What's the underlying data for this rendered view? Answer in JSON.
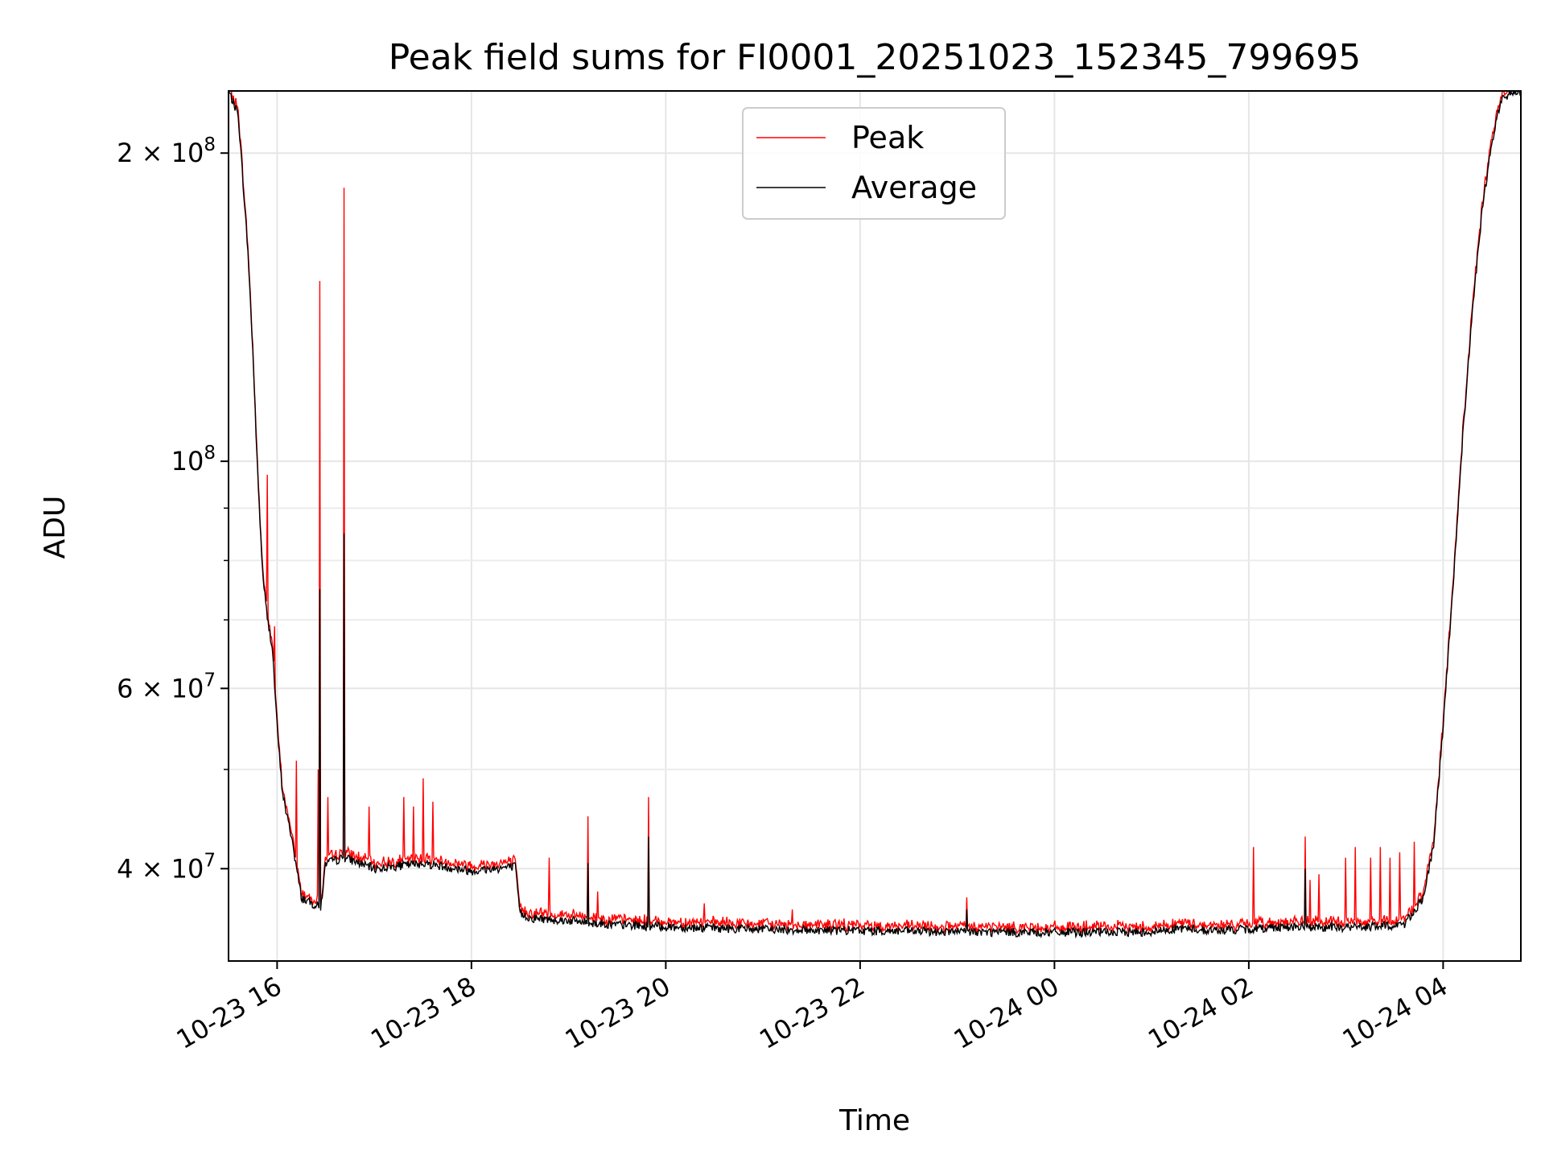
{
  "chart_data": {
    "type": "line",
    "title": "Peak field sums for FI0001_20251023_152345_799695",
    "xlabel": "Time",
    "ylabel": "ADU",
    "yscale": "log",
    "ylim": [
      32500000,
      230000000
    ],
    "xlim_hours": [
      15.5,
      28.8
    ],
    "grid": true,
    "legend_position": "upper center",
    "x_ticks": [
      {
        "hour": 16,
        "label": "10-23 16"
      },
      {
        "hour": 18,
        "label": "10-23 18"
      },
      {
        "hour": 20,
        "label": "10-23 20"
      },
      {
        "hour": 22,
        "label": "10-23 22"
      },
      {
        "hour": 24,
        "label": "10-24 00"
      },
      {
        "hour": 26,
        "label": "10-24 02"
      },
      {
        "hour": 28,
        "label": "10-24 04"
      }
    ],
    "y_major_ticks": [
      {
        "value": 40000000,
        "mant": "4 × 10",
        "exp": "7"
      },
      {
        "value": 60000000,
        "mant": "6 × 10",
        "exp": "7"
      },
      {
        "value": 100000000,
        "mant": "10",
        "exp": "8"
      },
      {
        "value": 200000000,
        "mant": "2 × 10",
        "exp": "8"
      }
    ],
    "y_minor_ticks": [
      50000000,
      70000000,
      80000000,
      90000000
    ],
    "series": [
      {
        "name": "Peak",
        "color": "#ff0000"
      },
      {
        "name": "Average",
        "color": "#000000"
      }
    ],
    "baseline_shape": [
      [
        15.5,
        230000000
      ],
      [
        15.6,
        218000000
      ],
      [
        15.7,
        160000000
      ],
      [
        15.75,
        128000000
      ],
      [
        15.8,
        97000000
      ],
      [
        15.85,
        78000000
      ],
      [
        15.9,
        70000000
      ],
      [
        15.95,
        66000000
      ],
      [
        16.0,
        55000000
      ],
      [
        16.05,
        48000000
      ],
      [
        16.1,
        45000000
      ],
      [
        16.15,
        43000000
      ],
      [
        16.2,
        40000000
      ],
      [
        16.25,
        37500000
      ],
      [
        16.35,
        37000000
      ],
      [
        16.45,
        36700000
      ],
      [
        16.5,
        40500000
      ],
      [
        16.7,
        41000000
      ],
      [
        17.0,
        40000000
      ],
      [
        17.5,
        40500000
      ],
      [
        18.0,
        39800000
      ],
      [
        18.45,
        40200000
      ],
      [
        18.5,
        36200000
      ],
      [
        18.6,
        35800000
      ],
      [
        19.0,
        35600000
      ],
      [
        19.4,
        35300000
      ],
      [
        20.0,
        35100000
      ],
      [
        20.5,
        35000000
      ],
      [
        21.0,
        34900000
      ],
      [
        22.0,
        34800000
      ],
      [
        23.0,
        34700000
      ],
      [
        24.0,
        34650000
      ],
      [
        25.0,
        34700000
      ],
      [
        25.3,
        35000000
      ],
      [
        25.6,
        34800000
      ],
      [
        26.0,
        34900000
      ],
      [
        26.3,
        35100000
      ],
      [
        26.8,
        35050000
      ],
      [
        27.3,
        35100000
      ],
      [
        27.6,
        35300000
      ],
      [
        27.8,
        37500000
      ],
      [
        27.9,
        42000000
      ],
      [
        28.0,
        55000000
      ],
      [
        28.1,
        75000000
      ],
      [
        28.2,
        105000000
      ],
      [
        28.3,
        140000000
      ],
      [
        28.4,
        175000000
      ],
      [
        28.5,
        205000000
      ],
      [
        28.6,
        225000000
      ],
      [
        28.7,
        230000000
      ],
      [
        28.8,
        230000000
      ]
    ],
    "spikes_peak": [
      [
        15.9,
        97000000
      ],
      [
        15.97,
        69000000
      ],
      [
        16.2,
        51000000
      ],
      [
        16.42,
        50000000
      ],
      [
        16.44,
        150000000
      ],
      [
        16.69,
        185000000
      ],
      [
        16.52,
        47000000
      ],
      [
        16.95,
        46000000
      ],
      [
        17.3,
        47000000
      ],
      [
        17.4,
        46000000
      ],
      [
        17.5,
        49000000
      ],
      [
        17.6,
        46500000
      ],
      [
        18.8,
        41000000
      ],
      [
        19.2,
        45000000
      ],
      [
        19.3,
        38000000
      ],
      [
        19.82,
        47000000
      ],
      [
        20.4,
        37000000
      ],
      [
        21.3,
        36500000
      ],
      [
        23.1,
        37500000
      ],
      [
        26.05,
        42000000
      ],
      [
        26.58,
        43000000
      ],
      [
        26.63,
        39000000
      ],
      [
        26.72,
        39500000
      ],
      [
        27.0,
        41000000
      ],
      [
        27.1,
        42000000
      ],
      [
        27.25,
        41000000
      ],
      [
        27.35,
        42000000
      ],
      [
        27.45,
        41000000
      ],
      [
        27.55,
        41500000
      ],
      [
        27.7,
        42500000
      ],
      [
        28.0,
        55000000
      ],
      [
        28.55,
        220000000
      ]
    ],
    "spikes_avg": [
      [
        16.44,
        75000000
      ],
      [
        16.69,
        85000000
      ],
      [
        19.82,
        43000000
      ],
      [
        19.2,
        40500000
      ],
      [
        26.58,
        40000000
      ],
      [
        23.1,
        36500000
      ]
    ]
  }
}
